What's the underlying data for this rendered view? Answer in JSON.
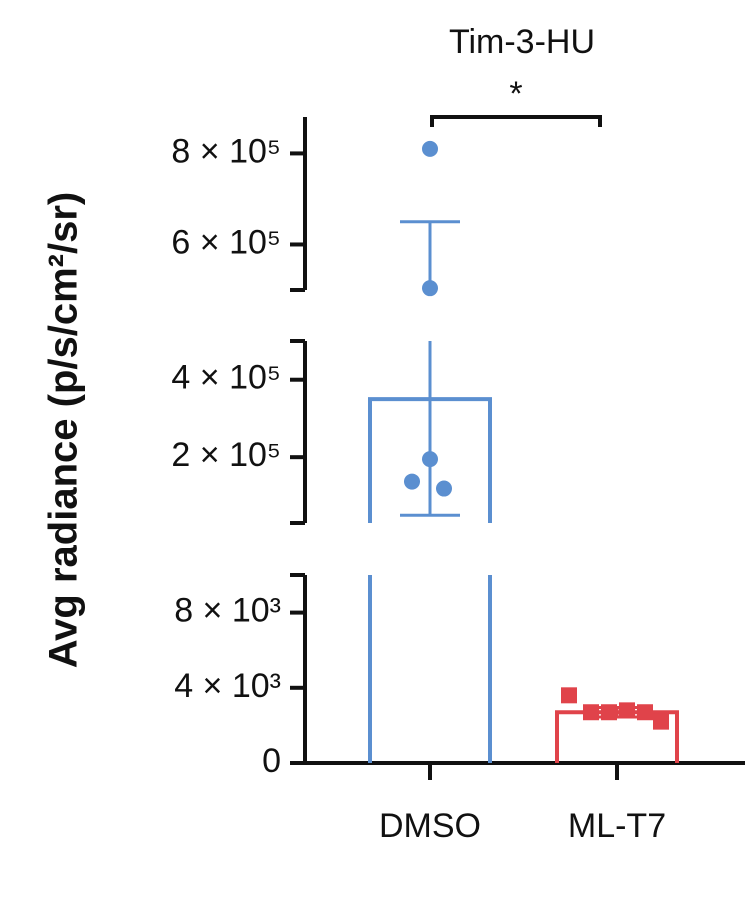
{
  "chart_data": {
    "type": "bar",
    "title": "Tim-3-HU",
    "y_label": "Avg radiance (p/s/cm²/sr)",
    "categories": [
      "DMSO",
      "ML-T7"
    ],
    "values": [
      350000,
      2700
    ],
    "errors": [
      300000,
      250
    ],
    "colors": [
      "#5b8fd0",
      "#e0434a"
    ],
    "points": [
      [
        810000,
        504000,
        195000,
        137000,
        119000
      ],
      [
        3600,
        2700,
        2700,
        2800,
        2700,
        2200
      ]
    ],
    "annotation": "*",
    "y_segments": [
      {
        "ylim": [
          0,
          10000
        ],
        "yticks": [
          0,
          {
            "value": 4000,
            "label": "4 × 10³"
          },
          {
            "value": 8000,
            "label": "8 × 10³"
          }
        ]
      },
      {
        "ylim": [
          30000,
          500000
        ],
        "yticks": [
          {
            "value": 200000,
            "label": "2 × 10⁵"
          },
          {
            "value": 400000,
            "label": "4 × 10⁵"
          }
        ]
      },
      {
        "ylim": [
          500000,
          880000
        ],
        "yticks": [
          {
            "value": 600000,
            "label": "6 × 10⁵"
          },
          {
            "value": 800000,
            "label": "8 × 10⁵"
          }
        ]
      }
    ]
  }
}
